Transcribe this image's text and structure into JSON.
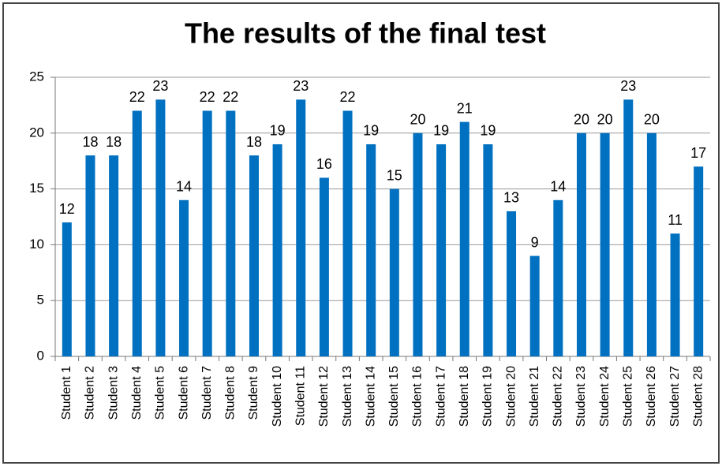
{
  "chart_data": {
    "type": "bar",
    "title": "The results of the final test",
    "categories": [
      "Student 1",
      "Student 2",
      "Student 3",
      "Student 4",
      "Student 5",
      "Student 6",
      "Student 7",
      "Student 8",
      "Student 9",
      "Student 10",
      "Student 11",
      "Student 12",
      "Student 13",
      "Student 14",
      "Student 15",
      "Student 16",
      "Student 17",
      "Student 18",
      "Student 19",
      "Student 20",
      "Student 21",
      "Student 22",
      "Student 23",
      "Student 24",
      "Student 25",
      "Student 26",
      "Student 27",
      "Student 28"
    ],
    "values": [
      12,
      18,
      18,
      22,
      23,
      14,
      22,
      22,
      18,
      19,
      23,
      16,
      22,
      19,
      15,
      20,
      19,
      21,
      19,
      13,
      9,
      14,
      20,
      20,
      23,
      20,
      11,
      17
    ],
    "color": "#0070c0",
    "ylim": [
      0,
      25
    ],
    "yticks": [
      0,
      5,
      10,
      15,
      20,
      25
    ],
    "grid": true
  }
}
